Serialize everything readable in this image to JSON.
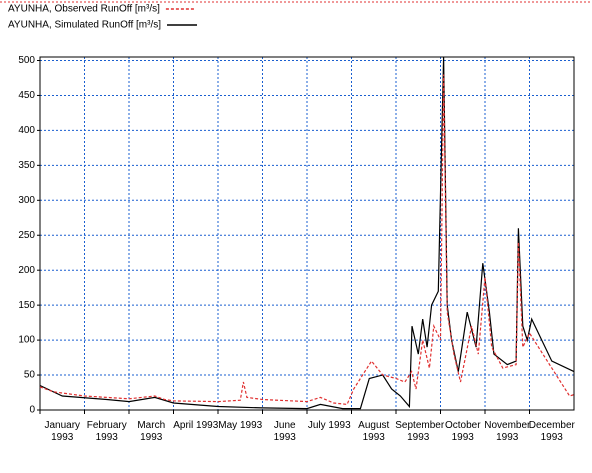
{
  "chart_data": {
    "type": "line",
    "categories": [
      "January 1993",
      "February 1993",
      "March 1993",
      "April 1993",
      "May 1993",
      "June 1993",
      "July 1993",
      "August 1993",
      "September 1993",
      "October 1993",
      "November 1993",
      "December 1993"
    ],
    "xlim": [
      0,
      12
    ],
    "ylim": [
      0,
      505
    ],
    "yticks": [
      0,
      50,
      100,
      150,
      200,
      250,
      300,
      350,
      400,
      450,
      500
    ],
    "grid": true,
    "series": [
      {
        "name": "AYUNHA, Observed RunOff [m³/s]",
        "color": "#e03030",
        "linestyle": "dashed",
        "x": [
          0,
          0.3,
          1,
          2,
          2.58,
          2.8,
          3,
          4,
          4.5,
          4.57,
          4.65,
          5,
          6,
          6.3,
          6.6,
          6.9,
          7.05,
          7.3,
          7.45,
          7.7,
          8,
          8.2,
          8.35,
          8.45,
          8.6,
          8.75,
          8.85,
          9.0,
          9.07,
          9.15,
          9.3,
          9.45,
          9.7,
          9.85,
          10.0,
          10.15,
          10.4,
          10.7,
          10.75,
          10.85,
          11.0,
          11.2,
          11.5,
          11.9,
          12
        ],
        "values": [
          33,
          26,
          20,
          16,
          20,
          15,
          13,
          12,
          14,
          40,
          18,
          15,
          12,
          18,
          10,
          8,
          30,
          55,
          70,
          50,
          45,
          40,
          55,
          30,
          100,
          60,
          120,
          100,
          480,
          140,
          80,
          40,
          120,
          80,
          190,
          90,
          60,
          65,
          240,
          90,
          110,
          90,
          60,
          20,
          22
        ]
      },
      {
        "name": "AYUNHA, Simulated RunOff [m³/s]",
        "color": "#000000",
        "linestyle": "solid",
        "x": [
          0,
          0.5,
          1.5,
          2.0,
          2.58,
          3,
          4,
          5,
          6,
          6.3,
          6.8,
          7.2,
          7.4,
          7.7,
          7.9,
          8.1,
          8.3,
          8.36,
          8.5,
          8.6,
          8.7,
          8.8,
          8.95,
          9.07,
          9.15,
          9.25,
          9.4,
          9.6,
          9.8,
          9.95,
          10.1,
          10.2,
          10.5,
          10.7,
          10.75,
          10.85,
          10.95,
          11.05,
          11.2,
          11.5,
          12
        ],
        "values": [
          35,
          20,
          15,
          12,
          18,
          10,
          5,
          3,
          2,
          8,
          2,
          2,
          45,
          50,
          30,
          20,
          5,
          120,
          80,
          130,
          90,
          150,
          170,
          505,
          150,
          100,
          55,
          140,
          90,
          210,
          140,
          80,
          65,
          70,
          260,
          120,
          100,
          130,
          110,
          70,
          55
        ]
      }
    ]
  }
}
